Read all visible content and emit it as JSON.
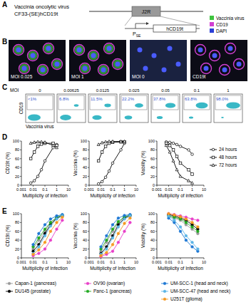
{
  "panel_labels": [
    "A",
    "B",
    "C",
    "D",
    "E"
  ],
  "schematic": {
    "title": "Vaccinia oncolytic virus",
    "construct": "CF33-(SE)hCD19t",
    "gene": "J2R",
    "promoter": "P",
    "promoter_sub": "SE",
    "insert": "hCD19t",
    "legend": [
      {
        "label": "Vaccinia virus",
        "color": "#3ec43e"
      },
      {
        "label": "CD19",
        "color": "#d23fd2"
      },
      {
        "label": "DAPI",
        "color": "#2b3fd6"
      }
    ]
  },
  "images": [
    {
      "label": "MOI 0.025"
    },
    {
      "label": "MOI 1"
    },
    {
      "label": "MOI 0"
    },
    {
      "label": "CD19t"
    }
  ],
  "flow": {
    "header": "MOI",
    "moi": [
      0,
      0.00625,
      0.0125,
      0.025,
      0.05,
      0.1,
      1
    ],
    "percentages": [
      "<1%",
      "6.8%",
      "11.5%",
      "22.2%",
      "37.8%",
      "63.8%",
      "98.0%"
    ],
    "y_label": "CD19",
    "x_label": "Vaccinia virus"
  },
  "chart_data": [
    {
      "type": "line",
      "x_label": "Multiplicity of infection",
      "y_label": "CD19t (%)",
      "log": "x",
      "grid": false,
      "xlim": [
        0.001,
        10
      ],
      "xticks": [
        0.001,
        0.01,
        0.1,
        1,
        10
      ],
      "ylim": [
        0,
        100
      ],
      "yticks": [
        0,
        20,
        40,
        60,
        80,
        100
      ],
      "x": [
        0.00625,
        0.0125,
        0.025,
        0.05,
        0.1,
        0.5,
        1
      ],
      "series": [
        {
          "name": "24 hours",
          "color": "#000000",
          "marker": "open_circle",
          "values": [
            5,
            10,
            20,
            35,
            55,
            85,
            92
          ]
        },
        {
          "name": "48 hours",
          "color": "#000000",
          "marker": "open_square",
          "values": [
            60,
            75,
            88,
            93,
            95,
            95,
            90
          ]
        },
        {
          "name": "72 hours",
          "color": "#000000",
          "marker": "open_triangle",
          "values": [
            95,
            97,
            98,
            98,
            97,
            90,
            85
          ]
        }
      ]
    },
    {
      "type": "line",
      "x_label": "Multiplicity of infection",
      "y_label": "Vaccinia (%)",
      "log": "x",
      "grid": false,
      "xlim": [
        0.001,
        10
      ],
      "xticks": [
        0.001,
        0.01,
        0.1,
        1,
        10
      ],
      "ylim": [
        0,
        100
      ],
      "yticks": [
        0,
        20,
        40,
        60,
        80,
        100
      ],
      "x": [
        0.00625,
        0.0125,
        0.025,
        0.05,
        0.1,
        0.5,
        1
      ],
      "series": [
        {
          "name": "24 hours",
          "color": "#000000",
          "marker": "open_circle",
          "values": [
            3,
            8,
            18,
            32,
            50,
            80,
            95
          ]
        },
        {
          "name": "48 hours",
          "color": "#000000",
          "marker": "open_square",
          "values": [
            55,
            75,
            88,
            95,
            97,
            98,
            98
          ]
        },
        {
          "name": "72 hours",
          "color": "#000000",
          "marker": "open_triangle",
          "values": [
            92,
            96,
            98,
            99,
            99,
            99,
            99
          ]
        }
      ]
    },
    {
      "type": "line",
      "x_label": "Multiplicity of infection",
      "y_label": "Viability (%)",
      "log": "x",
      "grid": false,
      "legend": "right",
      "xlim": [
        0.001,
        10
      ],
      "xticks": [
        0.001,
        0.01,
        0.1,
        1,
        10
      ],
      "ylim": [
        0,
        100
      ],
      "yticks": [
        0,
        20,
        40,
        60,
        80,
        100
      ],
      "x": [
        0.00625,
        0.0125,
        0.025,
        0.05,
        0.1,
        0.5,
        1
      ],
      "series": [
        {
          "name": "24 hours",
          "color": "#000000",
          "marker": "open_circle",
          "values": [
            98,
            97,
            95,
            92,
            88,
            80,
            70
          ]
        },
        {
          "name": "48 hours",
          "color": "#000000",
          "marker": "open_square",
          "values": [
            95,
            90,
            80,
            65,
            50,
            35,
            25
          ]
        },
        {
          "name": "72 hours",
          "color": "#000000",
          "marker": "open_triangle",
          "values": [
            90,
            75,
            55,
            35,
            20,
            10,
            5
          ]
        }
      ]
    },
    {
      "type": "line",
      "x_label": "Multiplicity of Infection",
      "y_label": "CD19t (%)",
      "log": "x",
      "grid": false,
      "xlim": [
        0.001,
        10
      ],
      "xticks": [
        0.001,
        0.01,
        0.1,
        1,
        10
      ],
      "ylim": [
        0,
        100
      ],
      "yticks": [
        0,
        20,
        40,
        60,
        80,
        100
      ],
      "x": [
        0.01,
        0.03,
        0.1,
        0.3,
        1,
        3
      ],
      "series": [
        {
          "name": "Capan-1 (pancreas)",
          "color": "#999999",
          "marker": "circle",
          "values": [
            20,
            40,
            60,
            80,
            90,
            95
          ]
        },
        {
          "name": "DU145 (prostate)",
          "color": "#000000",
          "marker": "circle",
          "values": [
            15,
            30,
            55,
            75,
            90,
            95
          ]
        },
        {
          "name": "OV90 (ovarian)",
          "color": "#e83fc8",
          "marker": "circle",
          "values": [
            5,
            10,
            20,
            40,
            65,
            85
          ]
        },
        {
          "name": "Panc-1 (pancreas)",
          "color": "#22aa22",
          "marker": "circle",
          "values": [
            25,
            45,
            65,
            80,
            92,
            97
          ]
        },
        {
          "name": "UM-SCC-1 (head and neck)",
          "color": "#1e78d4",
          "marker": "circle",
          "values": [
            30,
            55,
            75,
            88,
            95,
            98
          ]
        },
        {
          "name": "UM-SCC-47 (head and neck)",
          "color": "#5ab4e6",
          "marker": "circle",
          "values": [
            10,
            25,
            50,
            72,
            88,
            95
          ]
        },
        {
          "name": "U251T (glioma)",
          "color": "#f59a23",
          "marker": "circle",
          "values": [
            8,
            18,
            35,
            60,
            80,
            92
          ]
        }
      ]
    },
    {
      "type": "line",
      "x_label": "Multiplicity of Infection",
      "y_label": "Vaccinia (%)",
      "log": "x",
      "grid": false,
      "xlim": [
        0.001,
        10
      ],
      "xticks": [
        0.001,
        0.01,
        0.1,
        1,
        10
      ],
      "ylim": [
        0,
        100
      ],
      "yticks": [
        0,
        20,
        40,
        60,
        80,
        100
      ],
      "x": [
        0.01,
        0.03,
        0.1,
        0.3,
        1,
        3
      ],
      "series": [
        {
          "name": "Capan-1 (pancreas)",
          "color": "#999999",
          "marker": "circle",
          "values": [
            15,
            35,
            60,
            80,
            92,
            96
          ]
        },
        {
          "name": "DU145 (prostate)",
          "color": "#000000",
          "marker": "circle",
          "values": [
            10,
            25,
            50,
            75,
            90,
            95
          ]
        },
        {
          "name": "OV90 (ovarian)",
          "color": "#e83fc8",
          "marker": "circle",
          "values": [
            3,
            8,
            15,
            35,
            60,
            80
          ]
        },
        {
          "name": "Panc-1 (pancreas)",
          "color": "#22aa22",
          "marker": "circle",
          "values": [
            20,
            40,
            65,
            82,
            93,
            97
          ]
        },
        {
          "name": "UM-SCC-1 (head and neck)",
          "color": "#1e78d4",
          "marker": "circle",
          "values": [
            25,
            50,
            75,
            90,
            96,
            98
          ]
        },
        {
          "name": "UM-SCC-47 (head and neck)",
          "color": "#5ab4e6",
          "marker": "circle",
          "values": [
            8,
            20,
            45,
            70,
            88,
            95
          ]
        },
        {
          "name": "U251T (glioma)",
          "color": "#f59a23",
          "marker": "circle",
          "values": [
            5,
            12,
            30,
            55,
            78,
            90
          ]
        }
      ]
    },
    {
      "type": "line",
      "x_label": "Multiplicity of Infection",
      "y_label": "Viability (%)",
      "log": "x",
      "grid": false,
      "legend": "bottom",
      "xlim": [
        0.001,
        10
      ],
      "xticks": [
        0.001,
        0.01,
        0.1,
        1,
        10
      ],
      "ylim": [
        0,
        100
      ],
      "yticks": [
        0,
        20,
        40,
        60,
        80,
        100
      ],
      "x": [
        0.01,
        0.03,
        0.1,
        0.3,
        1,
        3
      ],
      "series": [
        {
          "name": "Capan-1 (pancreas)",
          "color": "#999999",
          "marker": "circle",
          "values": [
            95,
            90,
            85,
            75,
            65,
            55
          ]
        },
        {
          "name": "DU145 (prostate)",
          "color": "#000000",
          "marker": "circle",
          "values": [
            98,
            95,
            90,
            85,
            75,
            65
          ]
        },
        {
          "name": "OV90 (ovarian)",
          "color": "#e83fc8",
          "marker": "circle",
          "values": [
            100,
            98,
            95,
            92,
            88,
            85
          ]
        },
        {
          "name": "Panc-1 (pancreas)",
          "color": "#22aa22",
          "marker": "circle",
          "values": [
            95,
            92,
            88,
            80,
            70,
            60
          ]
        },
        {
          "name": "UM-SCC-1 (head and neck)",
          "color": "#1e78d4",
          "marker": "circle",
          "values": [
            90,
            80,
            60,
            40,
            25,
            15
          ]
        },
        {
          "name": "UM-SCC-47 (head and neck)",
          "color": "#5ab4e6",
          "marker": "circle",
          "values": [
            95,
            85,
            70,
            50,
            35,
            20
          ]
        },
        {
          "name": "U251T (glioma)",
          "color": "#f59a23",
          "marker": "circle",
          "values": [
            100,
            97,
            93,
            88,
            80,
            70
          ]
        }
      ]
    }
  ]
}
